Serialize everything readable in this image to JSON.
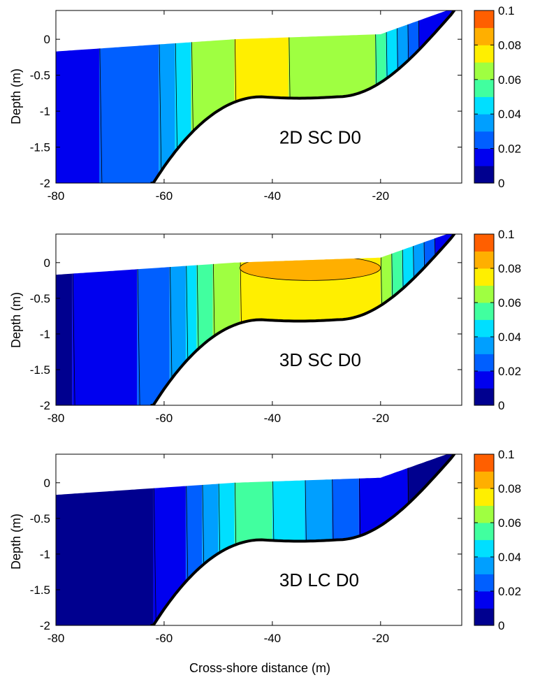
{
  "figure": {
    "xlabel": "Cross-shore distance (m)",
    "ylabel": "Depth (m)"
  },
  "colorbar": {
    "levels": [
      0,
      0.01,
      0.02,
      0.03,
      0.04,
      0.05,
      0.06,
      0.07,
      0.08,
      0.09,
      0.1
    ],
    "colors": [
      "#00008f",
      "#0000ef",
      "#005fff",
      "#009fff",
      "#00dfff",
      "#41ff9f",
      "#9fff41",
      "#ffef00",
      "#ffaf00",
      "#ff5f00"
    ],
    "ticks": [
      "0",
      "0.02",
      "0.04",
      "0.06",
      "0.08",
      "0.1"
    ]
  },
  "chart_data": [
    {
      "type": "contour",
      "label": "2D SC D0",
      "xlim": [
        -80,
        -5
      ],
      "ylim": [
        -2,
        0.4
      ],
      "xticks": [
        "-80",
        "-60",
        "-40",
        "-20"
      ],
      "yticks": [
        "-2",
        "-1.5",
        "-1",
        "-0.5",
        "0"
      ],
      "columns": [
        {
          "x": [
            -80,
            -72
          ],
          "level": 0.015
        },
        {
          "x": [
            -72,
            -61
          ],
          "level": 0.025
        },
        {
          "x": [
            -61,
            -58
          ],
          "level": 0.035
        },
        {
          "x": [
            -58,
            -55
          ],
          "level": 0.045
        },
        {
          "x": [
            -55,
            -47
          ],
          "level": 0.065
        },
        {
          "x": [
            -47,
            -37
          ],
          "level": 0.075
        },
        {
          "x": [
            -37,
            -21
          ],
          "level": 0.065
        },
        {
          "x": [
            -21,
            -19
          ],
          "level": 0.055
        },
        {
          "x": [
            -19,
            -17
          ],
          "level": 0.045
        },
        {
          "x": [
            -17,
            -15
          ],
          "level": 0.035
        },
        {
          "x": [
            -15,
            -13
          ],
          "level": 0.025
        },
        {
          "x": [
            -13,
            -5
          ],
          "level": 0.015
        }
      ]
    },
    {
      "type": "contour",
      "label": "3D SC D0",
      "xlim": [
        -80,
        -5
      ],
      "ylim": [
        -2,
        0.4
      ],
      "xticks": [
        "-80",
        "-60",
        "-40",
        "-20"
      ],
      "yticks": [
        "-2",
        "-1.5",
        "-1",
        "-0.5",
        "0"
      ],
      "columns": [
        {
          "x": [
            -80,
            -77
          ],
          "level": 0.005
        },
        {
          "x": [
            -77,
            -65
          ],
          "level": 0.015
        },
        {
          "x": [
            -65,
            -59
          ],
          "level": 0.025
        },
        {
          "x": [
            -59,
            -56
          ],
          "level": 0.035
        },
        {
          "x": [
            -56,
            -54
          ],
          "level": 0.045
        },
        {
          "x": [
            -54,
            -51
          ],
          "level": 0.055
        },
        {
          "x": [
            -51,
            -46
          ],
          "level": 0.065
        },
        {
          "x": [
            -46,
            -20
          ],
          "level": 0.075
        },
        {
          "x": [
            -20,
            -18
          ],
          "level": 0.065
        },
        {
          "x": [
            -18,
            -16
          ],
          "level": 0.055
        },
        {
          "x": [
            -16,
            -14
          ],
          "level": 0.045
        },
        {
          "x": [
            -14,
            -12
          ],
          "level": 0.035
        },
        {
          "x": [
            -12,
            -10
          ],
          "level": 0.025
        },
        {
          "x": [
            -10,
            -5
          ],
          "level": 0.015
        }
      ],
      "patches": [
        {
          "x": [
            -46,
            -20
          ],
          "top_depth": 0.1,
          "bottom_depth": -0.25,
          "level": 0.085
        }
      ]
    },
    {
      "type": "contour",
      "label": "3D LC D0",
      "xlim": [
        -80,
        -5
      ],
      "ylim": [
        -2,
        0.4
      ],
      "xticks": [
        "-80",
        "-60",
        "-40",
        "-20"
      ],
      "yticks": [
        "-2",
        "-1.5",
        "-1",
        "-0.5",
        "0"
      ],
      "columns": [
        {
          "x": [
            -80,
            -62
          ],
          "level": 0.005
        },
        {
          "x": [
            -62,
            -56
          ],
          "level": 0.015
        },
        {
          "x": [
            -56,
            -53
          ],
          "level": 0.025
        },
        {
          "x": [
            -53,
            -50
          ],
          "level": 0.035
        },
        {
          "x": [
            -50,
            -47
          ],
          "level": 0.045
        },
        {
          "x": [
            -47,
            -40
          ],
          "level": 0.055
        },
        {
          "x": [
            -40,
            -34
          ],
          "level": 0.045
        },
        {
          "x": [
            -34,
            -29
          ],
          "level": 0.035
        },
        {
          "x": [
            -29,
            -24
          ],
          "level": 0.025
        },
        {
          "x": [
            -24,
            -15
          ],
          "level": 0.015
        },
        {
          "x": [
            -15,
            -5
          ],
          "level": 0.005
        }
      ]
    }
  ]
}
